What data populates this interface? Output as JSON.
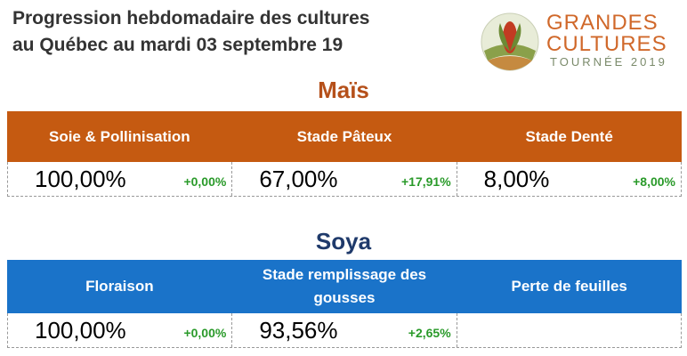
{
  "header": {
    "title_lines": [
      "Progression hebdomadaire des cultures",
      "au Québec au mardi 03 septembre 19"
    ],
    "logo": {
      "line1": "GRANDES",
      "line2": "CULTURES",
      "line3": "TOURNÉE 2019"
    }
  },
  "sections": [
    {
      "title": "Maïs",
      "columns": [
        {
          "label": "Soie & Pollinisation",
          "value": "100,00%",
          "change": "+0,00%"
        },
        {
          "label": "Stade Pâteux",
          "value": "67,00%",
          "change": "+17,91%"
        },
        {
          "label": "Stade Denté",
          "value": "8,00%",
          "change": "+8,00%"
        }
      ]
    },
    {
      "title": "Soya",
      "columns": [
        {
          "label": "Floraison",
          "value": "100,00%",
          "change": "+0,00%"
        },
        {
          "label": "Stade remplissage des gousses",
          "value": "93,56%",
          "change": "+2,65%"
        },
        {
          "label": "Perte de feuilles"
        }
      ]
    }
  ]
}
